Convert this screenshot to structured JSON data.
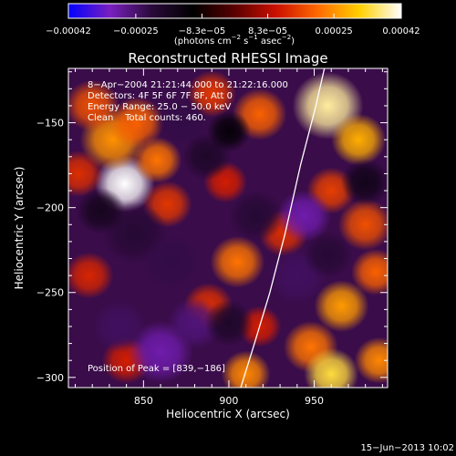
{
  "chart_data": {
    "type": "heatmap",
    "title": "Reconstructed RHESSI Image",
    "xlabel": "Heliocentric X (arcsec)",
    "ylabel": "Heliocentric Y (arcsec)",
    "xlim": [
      806,
      993
    ],
    "ylim": [
      -306,
      -118
    ],
    "x_ticks": [
      850,
      900,
      950
    ],
    "x_tick_labels": [
      "850",
      "900",
      "950"
    ],
    "y_ticks": [
      -150,
      -200,
      -250,
      -300
    ],
    "y_tick_labels": [
      "−150",
      "−200",
      "−250",
      "−300"
    ],
    "colorbar": {
      "range": [
        -0.00042,
        0.00042
      ],
      "ticks": [
        -0.00042,
        -0.00025,
        -8.3e-05,
        8.3e-05,
        0.00025,
        0.00042
      ],
      "tick_labels": [
        "−0.00042",
        "−0.00025",
        "−8.3e−05",
        "8.3e−05",
        "0.00025",
        "0.00042"
      ],
      "unit_base": "(photons cm",
      "unit_exp1": "−2",
      "unit_mid": " s",
      "unit_exp2": "−1",
      "unit_mid2": " asec",
      "unit_exp3": "−2",
      "unit_end": ")",
      "colors": [
        "#0000ff",
        "#7a1fbf",
        "#2a0a3a",
        "#000000",
        "#5a0000",
        "#cc1000",
        "#ff6a00",
        "#ffd000",
        "#ffffff"
      ]
    },
    "annotations": [
      "8−Apr−2004 21:21:44.000 to 21:22:16.000",
      "Detectors: 4F 5F 6F 7F 8F, Att 0",
      "Energy Range: 25.0 − 50.0 keV",
      "Clean    Total counts: 460."
    ],
    "peak_label": "Position of Peak = [839,−186]",
    "peak": {
      "x": 839,
      "y": -186
    },
    "limb_curve": [
      {
        "x": 907,
        "y": -306
      },
      {
        "x": 915,
        "y": -280
      },
      {
        "x": 924,
        "y": -250
      },
      {
        "x": 933,
        "y": -215
      },
      {
        "x": 942,
        "y": -175
      },
      {
        "x": 951,
        "y": -140
      },
      {
        "x": 956,
        "y": -118
      }
    ],
    "blobs": [
      {
        "x": 839,
        "y": -186,
        "v": 0.00042,
        "r": 11
      },
      {
        "x": 832,
        "y": -160,
        "v": 0.00025,
        "r": 12
      },
      {
        "x": 846,
        "y": -150,
        "v": 0.0002,
        "r": 10
      },
      {
        "x": 858,
        "y": -172,
        "v": 0.00022,
        "r": 9
      },
      {
        "x": 864,
        "y": -198,
        "v": 0.00015,
        "r": 9
      },
      {
        "x": 820,
        "y": -140,
        "v": 0.00018,
        "r": 10
      },
      {
        "x": 812,
        "y": -180,
        "v": 0.00014,
        "r": 9
      },
      {
        "x": 890,
        "y": -133,
        "v": 0.00015,
        "r": 9
      },
      {
        "x": 898,
        "y": -185,
        "v": 0.00012,
        "r": 8
      },
      {
        "x": 918,
        "y": -145,
        "v": 0.0002,
        "r": 10
      },
      {
        "x": 958,
        "y": -140,
        "v": 0.00038,
        "r": 13
      },
      {
        "x": 976,
        "y": -160,
        "v": 0.00028,
        "r": 10
      },
      {
        "x": 960,
        "y": -190,
        "v": 0.00016,
        "r": 9
      },
      {
        "x": 980,
        "y": -210,
        "v": 0.00018,
        "r": 10
      },
      {
        "x": 932,
        "y": -215,
        "v": 0.00014,
        "r": 9
      },
      {
        "x": 905,
        "y": -232,
        "v": 0.00022,
        "r": 10
      },
      {
        "x": 818,
        "y": -240,
        "v": 0.00013,
        "r": 9
      },
      {
        "x": 888,
        "y": -258,
        "v": 0.00014,
        "r": 9
      },
      {
        "x": 918,
        "y": -270,
        "v": 0.00012,
        "r": 8
      },
      {
        "x": 966,
        "y": -258,
        "v": 0.00026,
        "r": 10
      },
      {
        "x": 986,
        "y": -238,
        "v": 0.0002,
        "r": 9
      },
      {
        "x": 948,
        "y": -282,
        "v": 0.00022,
        "r": 10
      },
      {
        "x": 960,
        "y": -298,
        "v": 0.00034,
        "r": 10
      },
      {
        "x": 910,
        "y": -298,
        "v": 0.00024,
        "r": 9
      },
      {
        "x": 988,
        "y": -290,
        "v": 0.00024,
        "r": 9
      },
      {
        "x": 840,
        "y": -290,
        "v": 0.00012,
        "r": 9
      },
      {
        "x": 873,
        "y": -150,
        "v": -0.00022,
        "r": 10
      },
      {
        "x": 887,
        "y": -170,
        "v": -0.00018,
        "r": 9
      },
      {
        "x": 845,
        "y": -215,
        "v": -0.0002,
        "r": 12
      },
      {
        "x": 866,
        "y": -232,
        "v": -0.00022,
        "r": 11
      },
      {
        "x": 860,
        "y": -285,
        "v": -0.0003,
        "r": 12
      },
      {
        "x": 836,
        "y": -270,
        "v": -0.00024,
        "r": 10
      },
      {
        "x": 880,
        "y": -268,
        "v": -0.00026,
        "r": 10
      },
      {
        "x": 916,
        "y": -205,
        "v": -0.0002,
        "r": 10
      },
      {
        "x": 944,
        "y": -205,
        "v": -0.0003,
        "r": 10
      },
      {
        "x": 940,
        "y": -240,
        "v": -0.00024,
        "r": 11
      },
      {
        "x": 958,
        "y": -228,
        "v": -0.0002,
        "r": 9
      },
      {
        "x": 900,
        "y": -268,
        "v": -0.00018,
        "r": 9
      },
      {
        "x": 825,
        "y": -202,
        "v": -0.00016,
        "r": 9
      },
      {
        "x": 980,
        "y": -185,
        "v": -0.00015,
        "r": 9
      },
      {
        "x": 900,
        "y": -155,
        "v": -0.00012,
        "r": 8
      }
    ]
  },
  "footer": {
    "date": "15−Jun−2013 10:02"
  }
}
